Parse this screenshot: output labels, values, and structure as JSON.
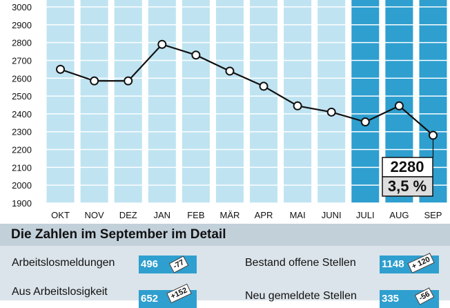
{
  "chart_data": {
    "type": "line",
    "categories": [
      "OKT",
      "NOV",
      "DEZ",
      "JAN",
      "FEB",
      "MÄR",
      "APR",
      "MAI",
      "JUNI",
      "JULI",
      "AUG",
      "SEP"
    ],
    "values": [
      2650,
      2585,
      2585,
      2790,
      2730,
      2640,
      2555,
      2445,
      2410,
      2355,
      2445,
      2280
    ],
    "yticks": [
      1900,
      2000,
      2100,
      2200,
      2300,
      2400,
      2500,
      2600,
      2700,
      2800,
      2900,
      3000
    ],
    "ylim": [
      1900,
      3050
    ],
    "highlight_categories": [
      "JULI",
      "AUG",
      "SEP"
    ],
    "callout": {
      "value": "2280",
      "rate": "3,5 %"
    },
    "colors": {
      "bar": "#bfe3f1",
      "highlight": "#2e9fcf",
      "line": "#111111"
    }
  },
  "detail": {
    "title": "Die Zahlen im September im Detail",
    "left": [
      {
        "label": "Arbeitslosmeldungen",
        "value": "496",
        "change": "-77"
      },
      {
        "label": "Aus Arbeitslosigkeit",
        "value": "652",
        "change": "+152"
      }
    ],
    "right": [
      {
        "label": "Bestand offene Stellen",
        "value": "1148",
        "change": "+ 120"
      },
      {
        "label": "Neu gemeldete Stellen",
        "value": "335",
        "change": "-56"
      }
    ]
  }
}
